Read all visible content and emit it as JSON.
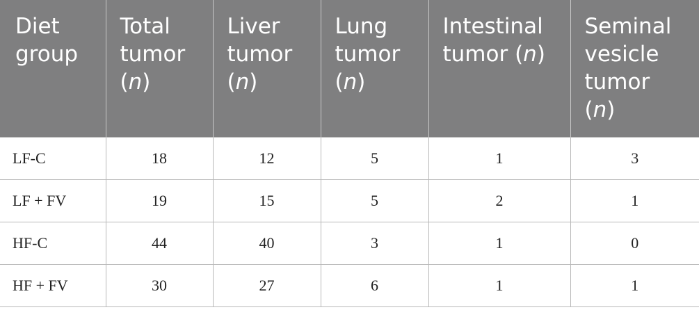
{
  "table": {
    "header": [
      [
        "Diet group"
      ],
      [
        "Total tumor (",
        "n",
        ")"
      ],
      [
        "Liver tumor (",
        "n",
        ")"
      ],
      [
        "Lung tumor (",
        "n",
        ")"
      ],
      [
        "Intestinal tumor (",
        "n",
        ")"
      ],
      [
        "Seminal vesicle tumor (",
        "n",
        ")"
      ]
    ],
    "rows": [
      [
        "LF-C",
        "18",
        "12",
        "5",
        "1",
        "3"
      ],
      [
        "LF + FV",
        "19",
        "15",
        "5",
        "2",
        "1"
      ],
      [
        "HF-C",
        "44",
        "40",
        "3",
        "1",
        "0"
      ],
      [
        "HF + FV",
        "30",
        "27",
        "6",
        "1",
        "1"
      ]
    ]
  }
}
